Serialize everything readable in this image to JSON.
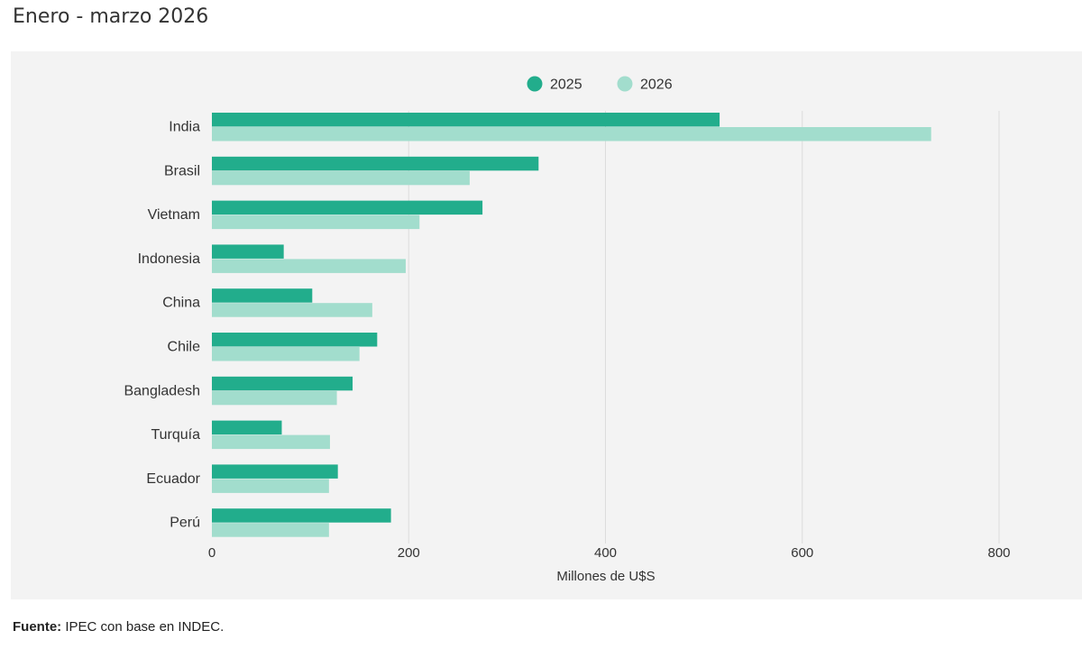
{
  "title": "Enero - marzo 2026",
  "source": {
    "label": "Fuente:",
    "text": "IPEC con base en INDEC."
  },
  "colors": {
    "series_2025": "#22ad8c",
    "series_2026": "#a2ddcd",
    "grid": "#dcdcdc",
    "panel": "#f3f3f3"
  },
  "chart_data": {
    "type": "bar",
    "orientation": "horizontal",
    "categories": [
      "India",
      "Brasil",
      "Vietnam",
      "Indonesia",
      "China",
      "Chile",
      "Bangladesh",
      "Turquía",
      "Ecuador",
      "Perú"
    ],
    "series": [
      {
        "name": "2025",
        "color": "#22ad8c",
        "values": [
          516,
          332,
          275,
          73,
          102,
          168,
          143,
          71,
          128,
          182
        ]
      },
      {
        "name": "2026",
        "color": "#a2ddcd",
        "values": [
          731,
          262,
          211,
          197,
          163,
          150,
          127,
          120,
          119,
          119
        ]
      }
    ],
    "xlabel": "Millones de U$S",
    "ylabel": "",
    "xlim": [
      0,
      800
    ],
    "xticks": [
      "0",
      "200",
      "400",
      "600",
      "800"
    ],
    "grid": true,
    "legend_position": "top"
  }
}
